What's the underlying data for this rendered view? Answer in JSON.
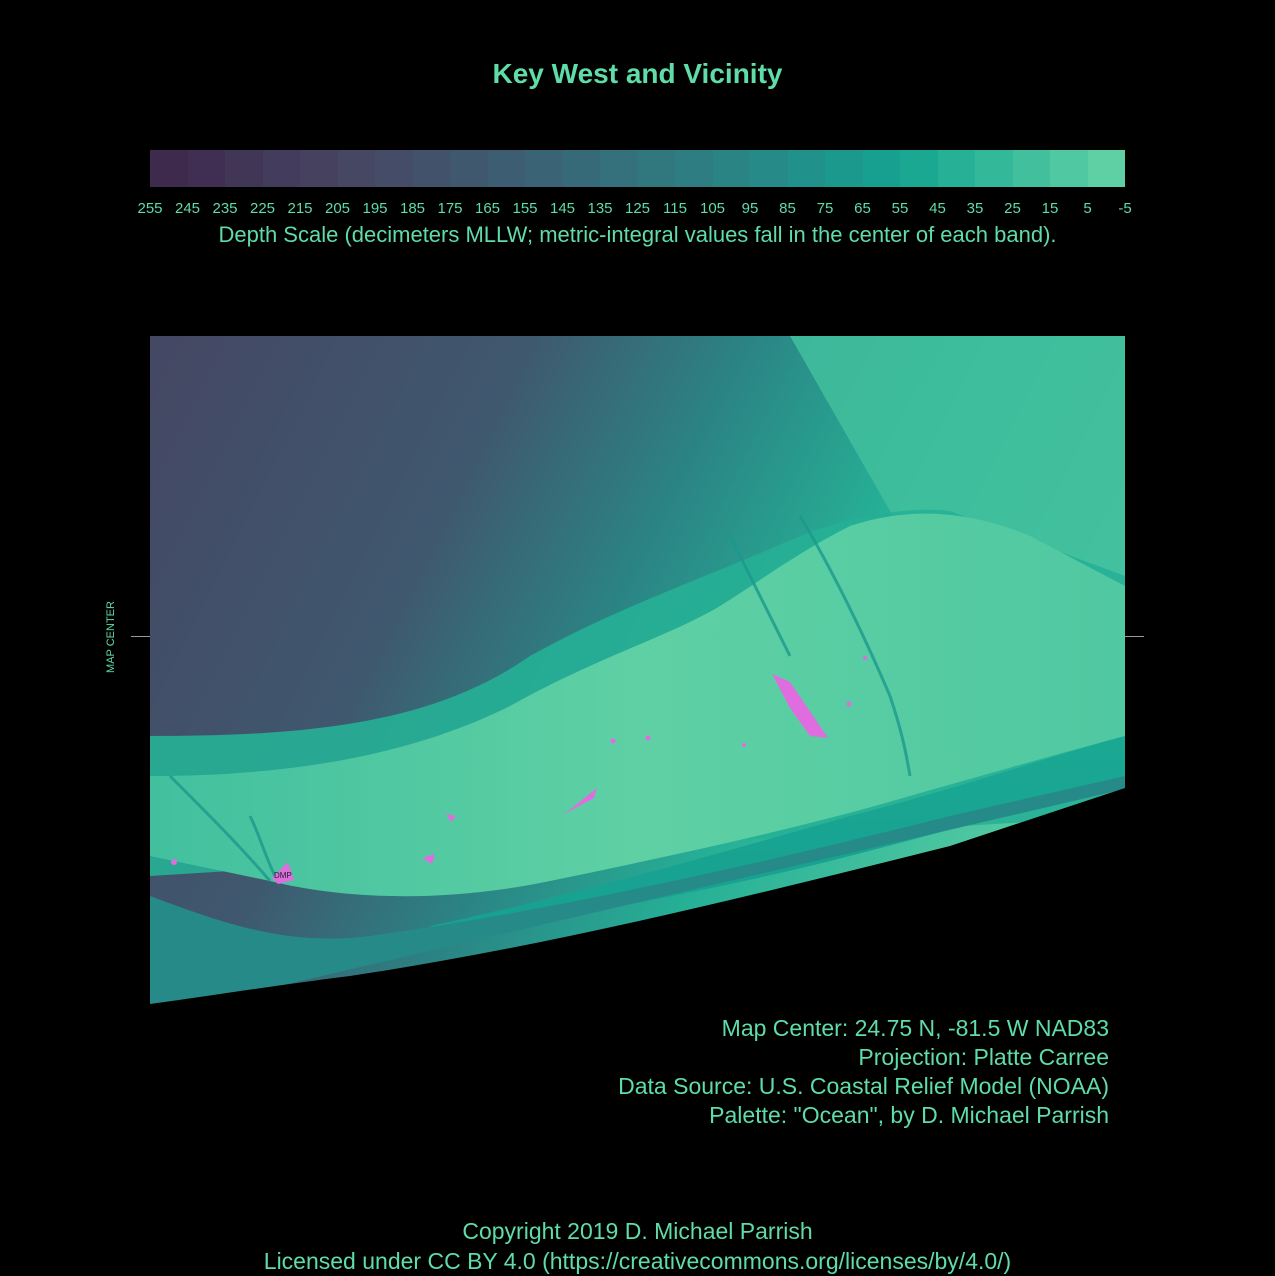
{
  "map": {
    "title": "Key West and Vicinity",
    "scale_caption": "Depth Scale (decimeters MLLW; metric-integral values fall in the center of each band).",
    "scale_labels": [
      "255",
      "245",
      "235",
      "225",
      "215",
      "205",
      "195",
      "185",
      "175",
      "165",
      "155",
      "145",
      "135",
      "125",
      "115",
      "105",
      "95",
      "85",
      "75",
      "65",
      "55",
      "45",
      "35",
      "25",
      "15",
      "5",
      "-5"
    ],
    "scale_colors": [
      "#3d2a4d",
      "#402f53",
      "#423657",
      "#443c5c",
      "#45415f",
      "#454763",
      "#444c67",
      "#42526b",
      "#3f586e",
      "#3d5e72",
      "#3a6475",
      "#376a78",
      "#34717c",
      "#31777e",
      "#2e7d82",
      "#2b8484",
      "#268b88",
      "#20928b",
      "#1c998d",
      "#17a090",
      "#1aa893",
      "#26b096",
      "#34b89a",
      "#42c09e",
      "#50c8a1",
      "#5fd0a4",
      "#6ce0a9"
    ],
    "center_label": "MAP CENTER",
    "marker_label": "DMP",
    "land_color": "#e06de0"
  },
  "info": {
    "center": "Map Center: 24.75 N, -81.5 W NAD83",
    "projection": "Projection: Platte Carree",
    "source": "Data Source: U.S. Coastal Relief Model (NOAA)",
    "palette": "Palette: \"Ocean\", by D. Michael Parrish"
  },
  "footer": {
    "copyright": "Copyright 2019 D. Michael Parrish",
    "license": "Licensed under CC BY 4.0 (https://creativecommons.org/licenses/by/4.0/)"
  }
}
